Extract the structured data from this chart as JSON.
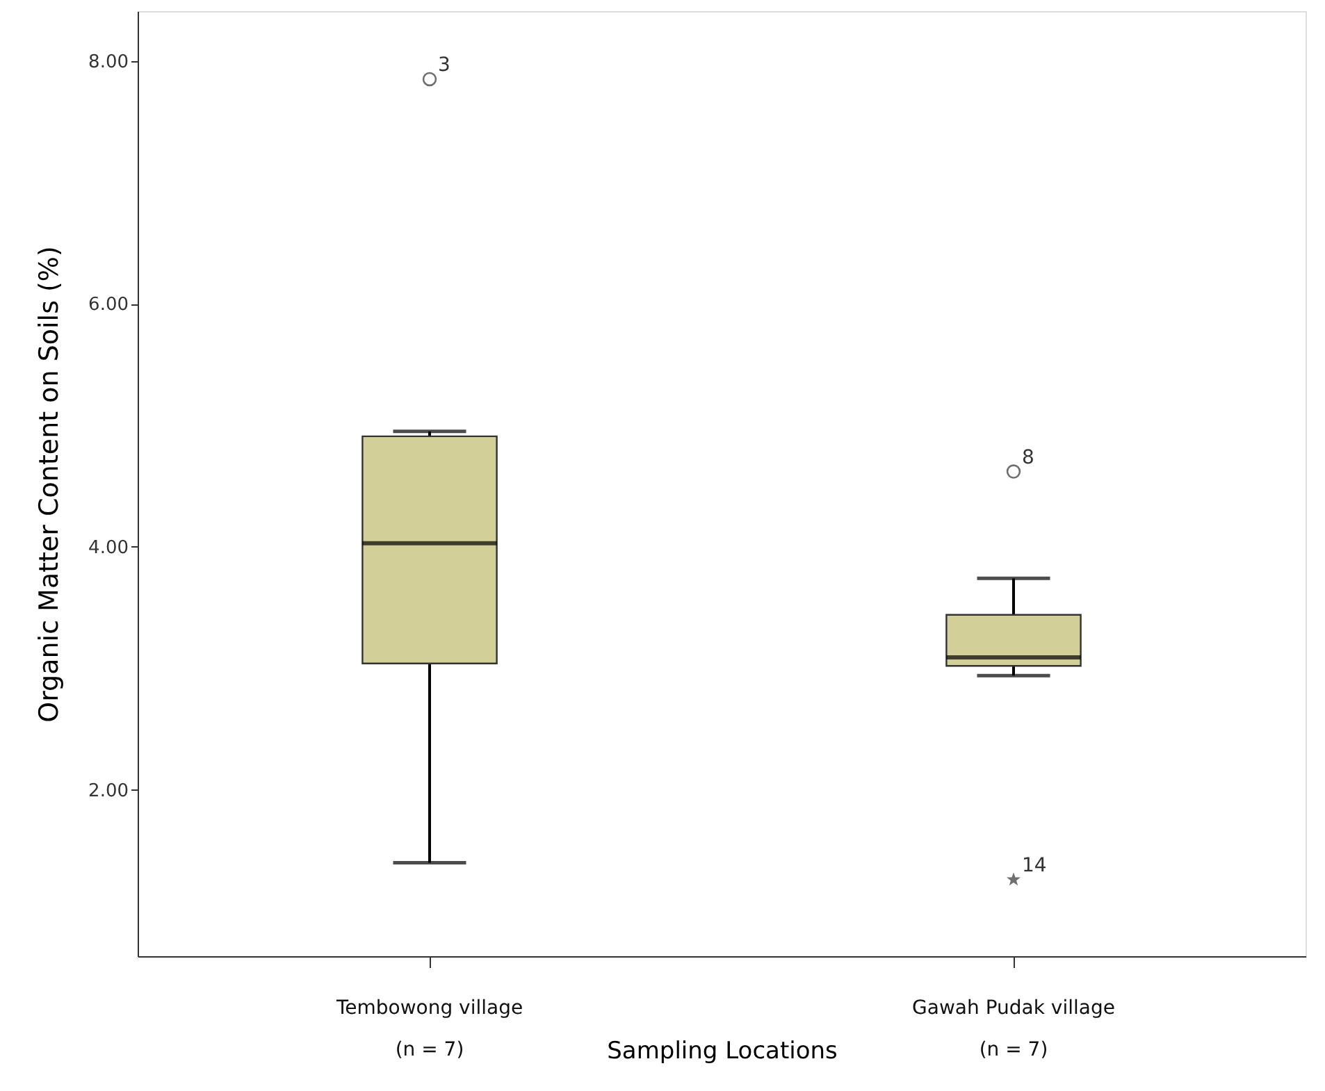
{
  "chart_data": {
    "type": "box",
    "xlabel": "Sampling Locations",
    "ylabel": "Organic Matter Content on Soils (%)",
    "categories": [
      "Tembowong village\n(n = 7)",
      "Gawah Pudak village\n(n = 7)"
    ],
    "series": [
      {
        "type": "box",
        "color": "#d3cf98",
        "boxes": [
          {
            "low": 1.4,
            "q1": 3.04,
            "median": 4.03,
            "q3": 4.91,
            "high": 4.95
          },
          {
            "low": 2.94,
            "q1": 3.02,
            "median": 3.09,
            "q3": 3.44,
            "high": 3.74
          }
        ]
      },
      {
        "type": "scatter",
        "color": "#333333",
        "marker": "circle",
        "x": [
          "Tembowong village\n(n = 7)",
          "Gawah Pudak village\n(n = 7)"
        ],
        "values": [
          7.85,
          4.62
        ]
      },
      {
        "type": "scatter",
        "color": "#333333",
        "marker": "star",
        "x": [
          "Gawah Pudak village\n(n = 7)"
        ],
        "values": [
          1.26
        ]
      }
    ],
    "ylim": [
      0.63,
      8.41
    ],
    "yticks": [
      {
        "value": 2,
        "label": "2.00"
      },
      {
        "value": 4,
        "label": "4.00"
      },
      {
        "value": 6,
        "label": "6.00"
      },
      {
        "value": 8,
        "label": "8.00"
      }
    ],
    "annotations": [
      {
        "text": "3",
        "x": "Tembowong village\n(n = 7)",
        "y": 7.85
      },
      {
        "text": "8",
        "x": "Gawah Pudak village\n(n = 7)",
        "y": 4.62
      },
      {
        "text": "14",
        "x": "Gawah Pudak village\n(n = 7)",
        "y": 1.26
      }
    ]
  }
}
